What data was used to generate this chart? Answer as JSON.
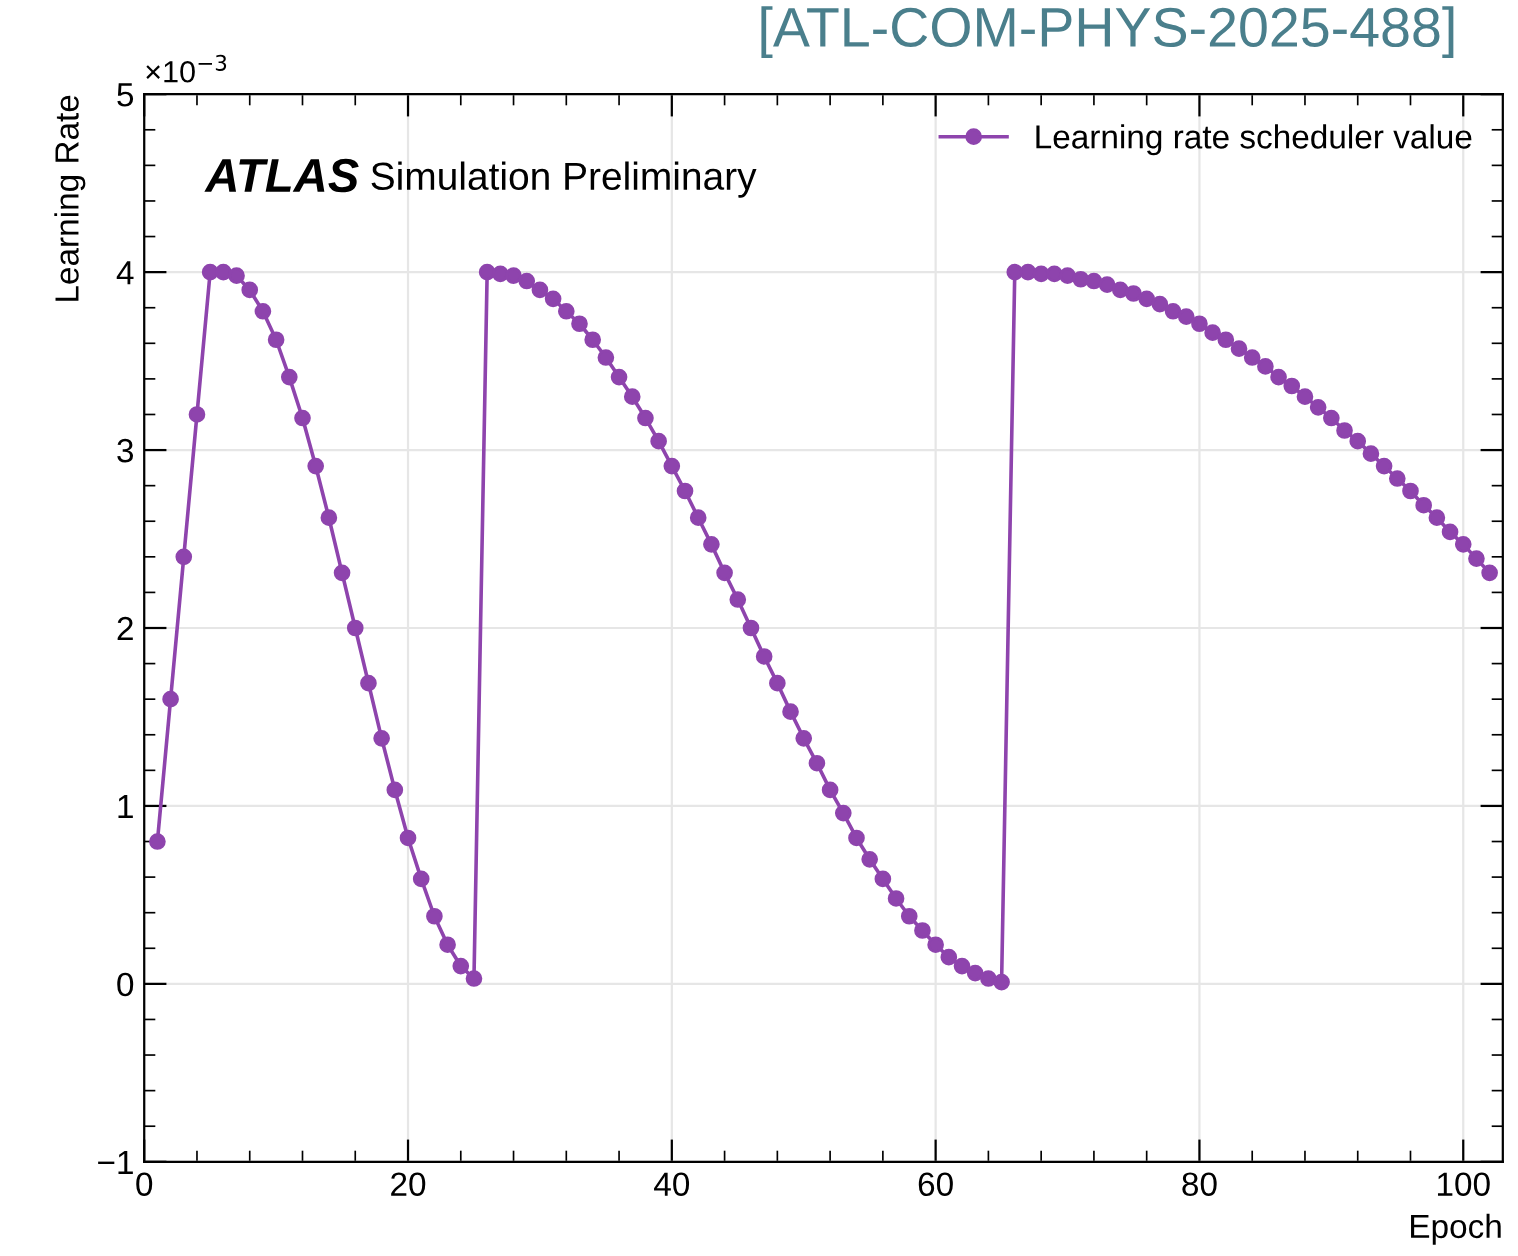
{
  "chart_data": {
    "type": "line",
    "xlabel": "Epoch",
    "ylabel": "Learning Rate",
    "annotations": [
      "[ATL-COM-PHYS-2025-488]",
      "ATLAS",
      "Simulation Preliminary",
      "×10$^{−3}$"
    ],
    "x": [
      1,
      2,
      3,
      4,
      5,
      6,
      7,
      8,
      9,
      10,
      11,
      12,
      13,
      14,
      15,
      16,
      17,
      18,
      19,
      20,
      21,
      22,
      23,
      24,
      25,
      26,
      27,
      28,
      29,
      30,
      31,
      32,
      33,
      34,
      35,
      36,
      37,
      38,
      39,
      40,
      41,
      42,
      43,
      44,
      45,
      46,
      47,
      48,
      49,
      50,
      51,
      52,
      53,
      54,
      55,
      56,
      57,
      58,
      59,
      60,
      61,
      62,
      63,
      64,
      65,
      66,
      67,
      68,
      69,
      70,
      71,
      72,
      73,
      74,
      75,
      76,
      77,
      78,
      79,
      80,
      81,
      82,
      83,
      84,
      85,
      86,
      87,
      88,
      89,
      90,
      91,
      92,
      93,
      94,
      95,
      96,
      97,
      98,
      99,
      100,
      101,
      102
    ],
    "series": [
      {
        "name": "Learning rate scheduler value",
        "color": "#8e44ad",
        "values": [
          0.8,
          1.6,
          2.4,
          3.2,
          4.0,
          4.0,
          3.98,
          3.9,
          3.78,
          3.62,
          3.41,
          3.18,
          2.91,
          2.62,
          2.31,
          2.0,
          1.69,
          1.38,
          1.09,
          0.82,
          0.59,
          0.38,
          0.22,
          0.1,
          0.03,
          4.0,
          3.99,
          3.98,
          3.95,
          3.9,
          3.85,
          3.78,
          3.71,
          3.62,
          3.52,
          3.41,
          3.3,
          3.18,
          3.05,
          2.91,
          2.77,
          2.62,
          2.47,
          2.31,
          2.16,
          2.0,
          1.84,
          1.69,
          1.53,
          1.38,
          1.24,
          1.09,
          0.96,
          0.82,
          0.7,
          0.59,
          0.48,
          0.38,
          0.3,
          0.22,
          0.15,
          0.1,
          0.06,
          0.03,
          0.01,
          4.0,
          4.0,
          3.99,
          3.99,
          3.98,
          3.96,
          3.95,
          3.93,
          3.9,
          3.88,
          3.85,
          3.82,
          3.78,
          3.75,
          3.71,
          3.66,
          3.62,
          3.57,
          3.52,
          3.47,
          3.41,
          3.36,
          3.3,
          3.24,
          3.18,
          3.11,
          3.05,
          2.98,
          2.91,
          2.84,
          2.77,
          2.69,
          2.62,
          2.54,
          2.47,
          2.39,
          2.31
        ]
      }
    ],
    "xlim": [
      0,
      103
    ],
    "xticks": [
      0,
      20,
      40,
      60,
      80,
      100
    ],
    "ylim": [
      -1,
      5
    ],
    "yticks": [
      -1,
      0,
      1,
      2,
      3,
      4,
      5
    ],
    "grid": true,
    "legend": "top right",
    "marker": "circle",
    "line_style": "solid"
  }
}
